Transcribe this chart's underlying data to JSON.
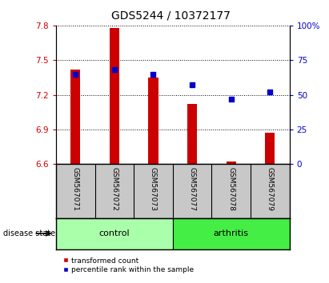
{
  "title": "GDS5244 / 10372177",
  "samples": [
    "GSM567071",
    "GSM567072",
    "GSM567073",
    "GSM567077",
    "GSM567078",
    "GSM567079"
  ],
  "transformed_count": [
    7.42,
    7.78,
    7.35,
    7.12,
    6.62,
    6.87
  ],
  "percentile_rank": [
    65,
    68,
    65,
    57,
    47,
    52
  ],
  "ylim_left": [
    6.6,
    7.8
  ],
  "ylim_right": [
    0,
    100
  ],
  "yticks_left": [
    6.6,
    6.9,
    7.2,
    7.5,
    7.8
  ],
  "yticks_right": [
    0,
    25,
    50,
    75,
    100
  ],
  "bar_color": "#cc0000",
  "dot_color": "#0000cc",
  "bar_width": 0.25,
  "bg_color": "#c8c8c8",
  "control_color": "#aaffaa",
  "arthritis_color": "#44ee44",
  "title_fontsize": 10,
  "tick_fontsize": 7.5,
  "label_fontsize": 7.5,
  "control_indices": [
    0,
    1,
    2
  ],
  "arthritis_indices": [
    3,
    4,
    5
  ]
}
